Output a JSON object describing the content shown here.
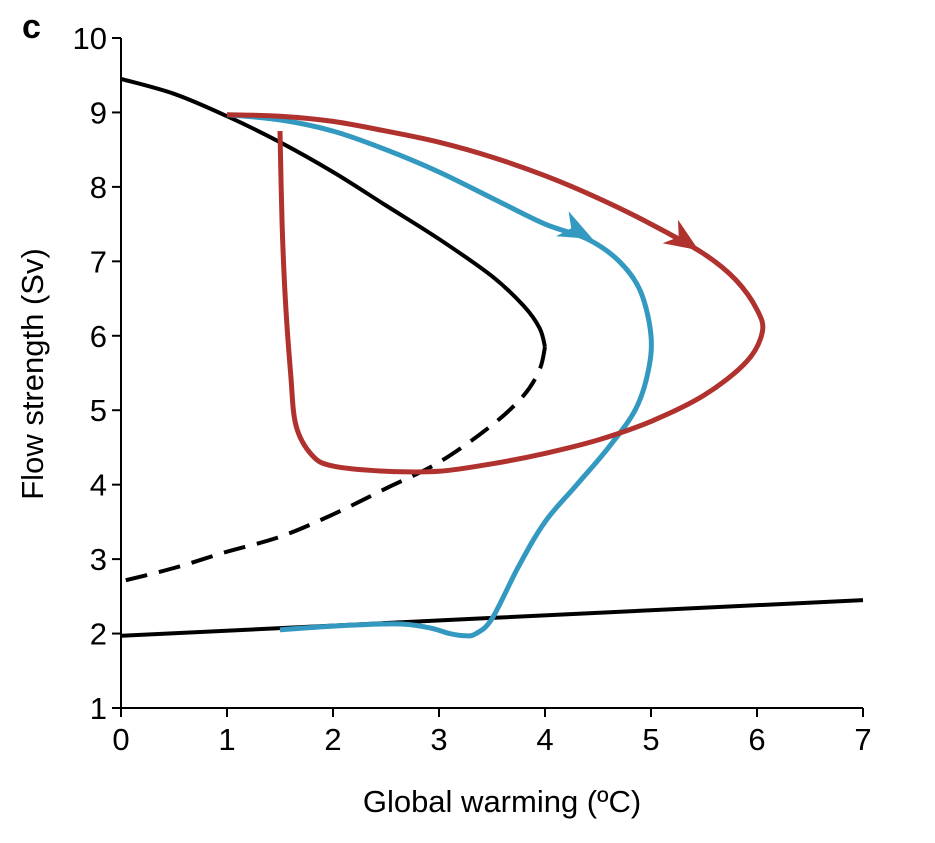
{
  "panel_label": "c",
  "colors": {
    "axis": "#000000",
    "black_curve": "#000000",
    "blue_curve": "#3399c0",
    "red_curve": "#b0322e"
  },
  "chart_data": {
    "type": "line",
    "title": "",
    "xlabel": "Global warming (ºC)",
    "ylabel": "Flow strength (Sv)",
    "xlim": [
      0,
      7
    ],
    "ylim": [
      1,
      10
    ],
    "x_ticks": [
      0,
      1,
      2,
      3,
      4,
      5,
      6,
      7
    ],
    "y_ticks": [
      1,
      2,
      3,
      4,
      5,
      6,
      7,
      8,
      9,
      10
    ],
    "grid": false,
    "legend": "none",
    "series": [
      {
        "key": "upper_stable",
        "style": "solid",
        "color": "#000000",
        "points": [
          [
            0,
            9.45
          ],
          [
            0.5,
            9.25
          ],
          [
            1.0,
            8.95
          ],
          [
            1.5,
            8.6
          ],
          [
            2.0,
            8.2
          ],
          [
            2.5,
            7.75
          ],
          [
            3.0,
            7.3
          ],
          [
            3.5,
            6.8
          ],
          [
            3.8,
            6.4
          ],
          [
            3.95,
            6.1
          ],
          [
            4.0,
            5.85
          ]
        ]
      },
      {
        "key": "unstable",
        "style": "dashed",
        "color": "#000000",
        "points": [
          [
            4.0,
            5.85
          ],
          [
            3.95,
            5.55
          ],
          [
            3.8,
            5.2
          ],
          [
            3.5,
            4.8
          ],
          [
            3.0,
            4.3
          ],
          [
            2.5,
            3.95
          ],
          [
            2.0,
            3.6
          ],
          [
            1.5,
            3.3
          ],
          [
            1.0,
            3.1
          ],
          [
            0.5,
            2.88
          ],
          [
            0,
            2.7
          ]
        ]
      },
      {
        "key": "lower_stable",
        "style": "solid",
        "color": "#000000",
        "points": [
          [
            0,
            1.97
          ],
          [
            7,
            2.45
          ]
        ]
      },
      {
        "key": "blue_trajectory",
        "style": "solid",
        "color": "#3399c0",
        "arrow_at": [
          4.45,
          7.3
        ],
        "points": [
          [
            1.0,
            8.97
          ],
          [
            1.5,
            8.9
          ],
          [
            2.0,
            8.75
          ],
          [
            2.5,
            8.5
          ],
          [
            3.0,
            8.2
          ],
          [
            3.5,
            7.85
          ],
          [
            4.0,
            7.5
          ],
          [
            4.4,
            7.3
          ],
          [
            4.7,
            7.0
          ],
          [
            4.9,
            6.6
          ],
          [
            5.0,
            6.0
          ],
          [
            4.97,
            5.5
          ],
          [
            4.85,
            5.0
          ],
          [
            4.6,
            4.5
          ],
          [
            4.3,
            4.0
          ],
          [
            4.0,
            3.5
          ],
          [
            3.75,
            2.9
          ],
          [
            3.5,
            2.2
          ],
          [
            3.35,
            2.0
          ],
          [
            3.25,
            1.97
          ],
          [
            3.1,
            2.0
          ],
          [
            2.9,
            2.08
          ],
          [
            2.6,
            2.13
          ],
          [
            2.0,
            2.1
          ],
          [
            1.5,
            2.05
          ]
        ]
      },
      {
        "key": "red_trajectory",
        "style": "solid",
        "color": "#b0322e",
        "arrow_at": [
          5.45,
          7.15
        ],
        "points": [
          [
            1.0,
            8.97
          ],
          [
            1.5,
            8.95
          ],
          [
            2.0,
            8.88
          ],
          [
            2.5,
            8.75
          ],
          [
            3.0,
            8.6
          ],
          [
            3.5,
            8.4
          ],
          [
            4.0,
            8.15
          ],
          [
            4.5,
            7.85
          ],
          [
            5.0,
            7.5
          ],
          [
            5.5,
            7.1
          ],
          [
            5.8,
            6.75
          ],
          [
            6.0,
            6.35
          ],
          [
            6.05,
            6.05
          ],
          [
            5.9,
            5.65
          ],
          [
            5.5,
            5.2
          ],
          [
            5.0,
            4.85
          ],
          [
            4.5,
            4.6
          ],
          [
            4.0,
            4.42
          ],
          [
            3.5,
            4.28
          ],
          [
            3.0,
            4.18
          ],
          [
            2.5,
            4.18
          ],
          [
            2.0,
            4.25
          ],
          [
            1.8,
            4.4
          ],
          [
            1.65,
            4.8
          ],
          [
            1.6,
            5.5
          ],
          [
            1.55,
            6.5
          ],
          [
            1.52,
            7.5
          ],
          [
            1.5,
            8.75
          ]
        ]
      }
    ]
  }
}
